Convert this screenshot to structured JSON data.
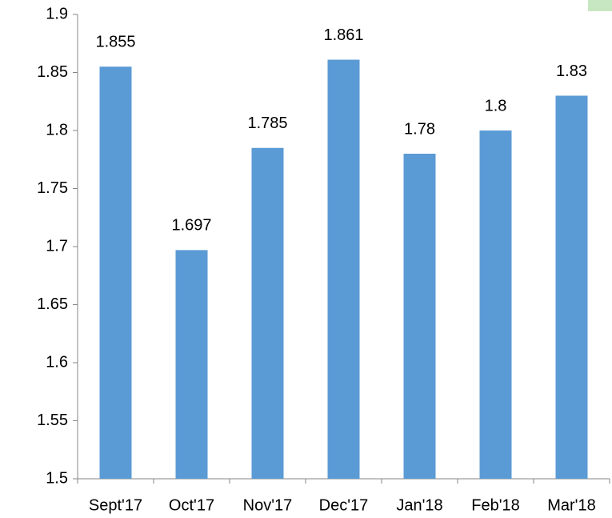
{
  "chart_data": {
    "type": "bar",
    "categories": [
      "Sept'17",
      "Oct'17",
      "Nov'17",
      "Dec'17",
      "Jan'18",
      "Feb'18",
      "Mar'18"
    ],
    "values": [
      1.855,
      1.697,
      1.785,
      1.861,
      1.78,
      1.8,
      1.83
    ],
    "color": "#5b9bd5",
    "ylim": [
      1.5,
      1.9
    ],
    "yticks": [
      1.5,
      1.55,
      1.6,
      1.65,
      1.7,
      1.75,
      1.8,
      1.85,
      1.9
    ],
    "grid": false
  }
}
